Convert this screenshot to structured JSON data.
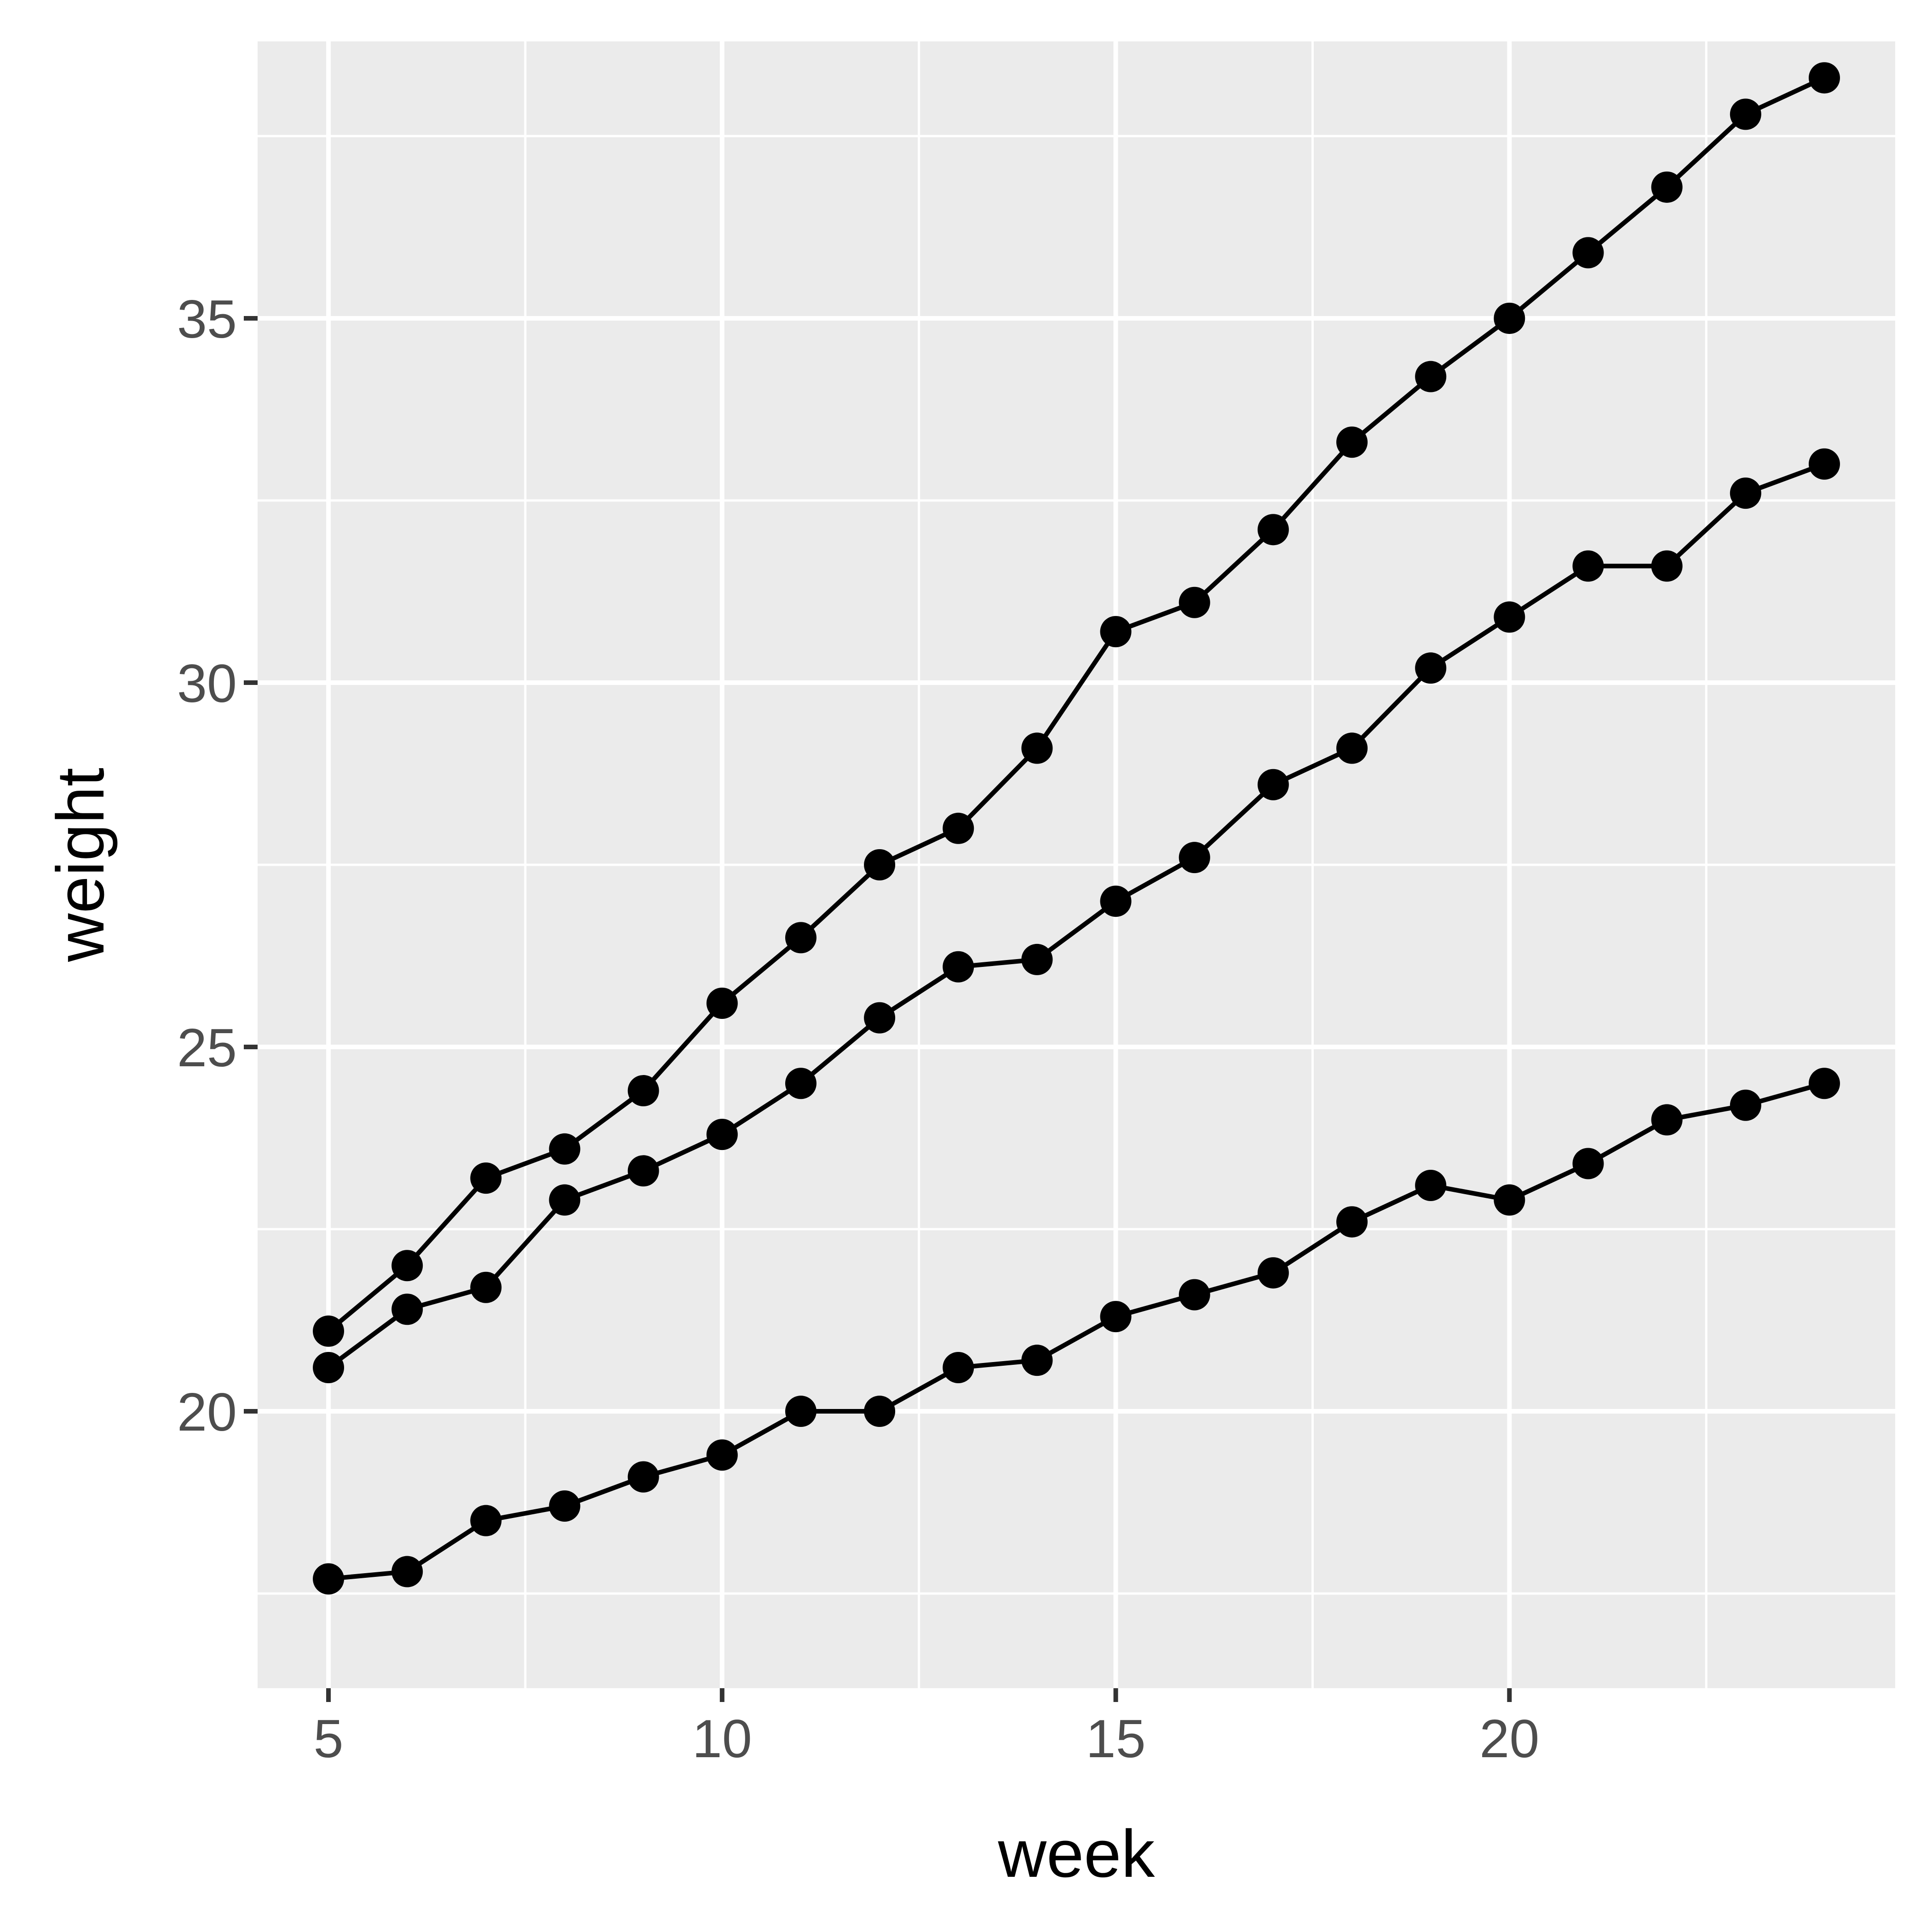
{
  "chart_data": {
    "type": "line",
    "title": "",
    "xlabel": "week",
    "ylabel": "weight",
    "xlim": [
      4.1,
      24.9
    ],
    "ylim": [
      16.2,
      38.8
    ],
    "x_ticks": [
      5,
      10,
      15,
      20
    ],
    "x_minor_ticks": [
      7.5,
      12.5,
      17.5,
      22.5
    ],
    "y_ticks": [
      20,
      25,
      30,
      35
    ],
    "y_minor_ticks": [
      17.5,
      22.5,
      27.5,
      32.5,
      37.5
    ],
    "grid": true,
    "legend": "none",
    "marker": "circle",
    "color": "#000000",
    "x": [
      5,
      6,
      7,
      8,
      9,
      10,
      11,
      12,
      13,
      14,
      15,
      16,
      17,
      18,
      19,
      20,
      21,
      22,
      23,
      24
    ],
    "series": [
      {
        "values": [
          21.1,
          22.0,
          23.2,
          23.6,
          24.4,
          25.6,
          26.5,
          27.5,
          28.0,
          29.1,
          30.7,
          31.1,
          32.1,
          33.3,
          34.2,
          35.0,
          35.9,
          36.8,
          37.8,
          38.3
        ]
      },
      {
        "values": [
          20.6,
          21.4,
          21.7,
          22.9,
          23.3,
          23.8,
          24.5,
          25.4,
          26.1,
          26.2,
          27.0,
          27.6,
          28.6,
          29.1,
          30.2,
          30.9,
          31.6,
          31.6,
          32.6,
          33.0
        ]
      },
      {
        "values": [
          17.7,
          17.8,
          18.5,
          18.7,
          19.1,
          19.4,
          20.0,
          20.0,
          20.6,
          20.7,
          21.3,
          21.6,
          21.9,
          22.6,
          23.1,
          22.9,
          23.4,
          24.0,
          24.2,
          24.5
        ]
      }
    ]
  }
}
